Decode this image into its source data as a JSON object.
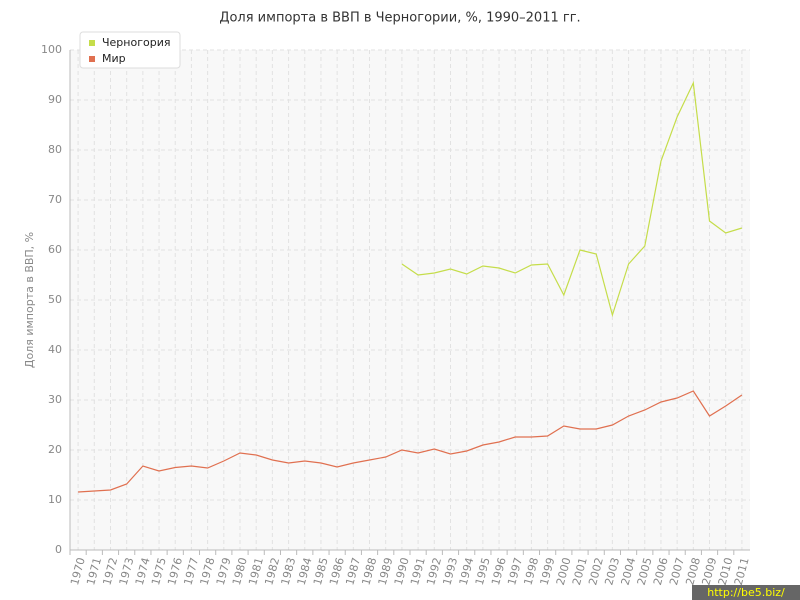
{
  "chart_data": {
    "type": "line",
    "title": "Доля импорта в ВВП в Черногории, %, 1990–2011 гг.",
    "y_label": "Доля импорта в ВВП, %",
    "watermark": "http://be5.biz/",
    "categories": [
      "1970",
      "1971",
      "1972",
      "1973",
      "1974",
      "1975",
      "1976",
      "1977",
      "1978",
      "1979",
      "1980",
      "1981",
      "1982",
      "1983",
      "1984",
      "1985",
      "1986",
      "1987",
      "1988",
      "1989",
      "1990",
      "1991",
      "1992",
      "1993",
      "1994",
      "1995",
      "1996",
      "1997",
      "1998",
      "1999",
      "2000",
      "2001",
      "2002",
      "2003",
      "2004",
      "2005",
      "2006",
      "2007",
      "2008",
      "2009",
      "2010",
      "2011"
    ],
    "series": [
      {
        "name": "Черногория",
        "color": "#c5dd4a",
        "values": [
          null,
          null,
          null,
          null,
          null,
          null,
          null,
          null,
          null,
          null,
          null,
          null,
          null,
          null,
          null,
          null,
          null,
          null,
          null,
          null,
          57.2,
          55.0,
          55.4,
          56.2,
          55.2,
          56.8,
          56.4,
          55.4,
          57.0,
          57.2,
          51.0,
          60.0,
          59.2,
          47.0,
          57.2,
          60.8,
          77.8,
          86.6,
          93.4,
          65.8,
          63.4,
          64.4
        ]
      },
      {
        "name": "Мир",
        "color": "#e07050",
        "values": [
          11.6,
          11.8,
          12.0,
          13.2,
          16.8,
          15.8,
          16.5,
          16.8,
          16.4,
          17.8,
          19.4,
          19.0,
          18.0,
          17.4,
          17.8,
          17.4,
          16.6,
          17.4,
          18.0,
          18.6,
          20.0,
          19.4,
          20.2,
          19.2,
          19.8,
          21.0,
          21.6,
          22.6,
          22.6,
          22.8,
          24.8,
          24.2,
          24.2,
          25.0,
          26.8,
          28.0,
          29.6,
          30.4,
          31.8,
          26.8,
          28.8,
          31.0
        ]
      }
    ],
    "ylim": [
      0,
      100
    ],
    "yticks": [
      0,
      10,
      20,
      30,
      40,
      50,
      60,
      70,
      80,
      90,
      100
    ],
    "grid": true,
    "legend": "top-left"
  }
}
